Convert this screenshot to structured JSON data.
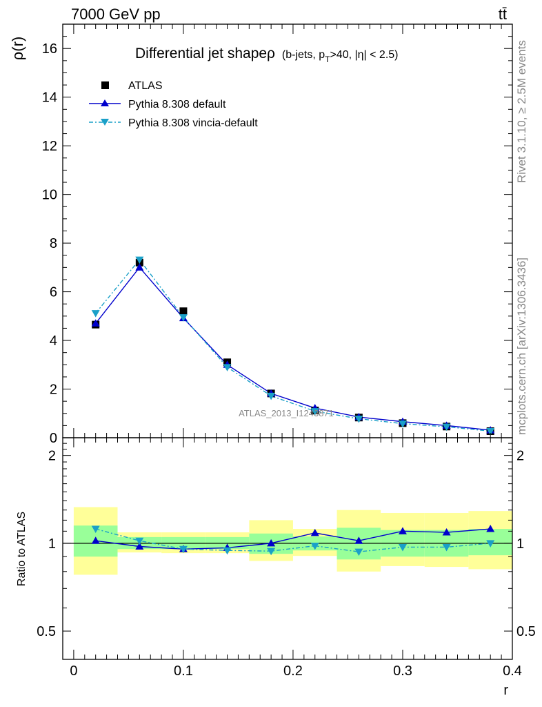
{
  "header": {
    "energy_label": "7000 GeV pp",
    "process_label": "tt̄"
  },
  "side_labels": {
    "rivet": "Rivet 3.1.10, ≥ 2.5M events",
    "mcplots": "mcplots.cern.ch [arXiv:1306.3436]"
  },
  "colors": {
    "atlas": "#000000",
    "default": "#0000cc",
    "vincia": "#1aa0c8",
    "band_inner": "#99ff99",
    "band_outer": "#ffff99"
  },
  "chart_data": [
    {
      "type": "line",
      "title": "Differential jet shapeρ",
      "subtitle_parts": [
        "(b-jets, p",
        "T",
        ">40, |η| < 2.5)"
      ],
      "ylabel": "ρ(r)",
      "xlim": [
        -0.01,
        0.4
      ],
      "ylim": [
        0,
        17
      ],
      "y_ticks": [
        0,
        2,
        4,
        6,
        8,
        10,
        12,
        14,
        16
      ],
      "watermark": "ATLAS_2013_I1243871",
      "x": [
        0.02,
        0.06,
        0.1,
        0.14,
        0.18,
        0.22,
        0.26,
        0.3,
        0.34,
        0.38
      ],
      "series": [
        {
          "name": "ATLAS",
          "marker": "square",
          "values": [
            4.65,
            7.2,
            5.2,
            3.1,
            1.82,
            1.12,
            0.83,
            0.6,
            0.46,
            0.27
          ]
        },
        {
          "name": "Pythia 8.308 default",
          "marker": "triangle-up",
          "values": [
            4.7,
            7.0,
            4.92,
            3.0,
            1.82,
            1.22,
            0.85,
            0.66,
            0.5,
            0.31
          ]
        },
        {
          "name": "Pythia 8.308 vincia-default",
          "marker": "triangle-down",
          "values": [
            5.12,
            7.32,
            4.95,
            2.9,
            1.72,
            1.09,
            0.78,
            0.58,
            0.45,
            0.27
          ]
        }
      ],
      "legend_position": "top-left"
    },
    {
      "type": "line",
      "ylabel": "Ratio to ATLAS",
      "xlabel": "r",
      "y_scale": "log",
      "ylim": [
        0.4,
        2.3
      ],
      "y_ticks": [
        0.5,
        1,
        2
      ],
      "x_ticks": [
        0,
        0.1,
        0.2,
        0.3,
        0.4
      ],
      "x": [
        0.02,
        0.06,
        0.1,
        0.14,
        0.18,
        0.22,
        0.26,
        0.3,
        0.34,
        0.38
      ],
      "series": [
        {
          "name": "Pythia 8.308 default",
          "values": [
            1.02,
            0.975,
            0.955,
            0.965,
            1.0,
            1.085,
            1.02,
            1.1,
            1.09,
            1.12
          ]
        },
        {
          "name": "Pythia 8.308 vincia-default",
          "values": [
            1.12,
            1.02,
            0.955,
            0.945,
            0.94,
            0.98,
            0.935,
            0.97,
            0.97,
            1.0
          ]
        }
      ],
      "bands": {
        "bin_edges": [
          0.0,
          0.04,
          0.08,
          0.12,
          0.16,
          0.2,
          0.24,
          0.28,
          0.32,
          0.36,
          0.4
        ],
        "inner_low": [
          0.9,
          0.955,
          0.955,
          0.955,
          0.92,
          0.945,
          0.88,
          0.9,
          0.9,
          0.91
        ],
        "inner_high": [
          1.15,
          1.05,
          1.05,
          1.05,
          1.08,
          1.055,
          1.13,
          1.11,
          1.11,
          1.12
        ],
        "outer_low": [
          0.78,
          0.93,
          0.925,
          0.925,
          0.87,
          0.905,
          0.8,
          0.835,
          0.83,
          0.815
        ],
        "outer_high": [
          1.33,
          1.09,
          1.09,
          1.09,
          1.2,
          1.12,
          1.3,
          1.27,
          1.27,
          1.29
        ]
      }
    }
  ]
}
